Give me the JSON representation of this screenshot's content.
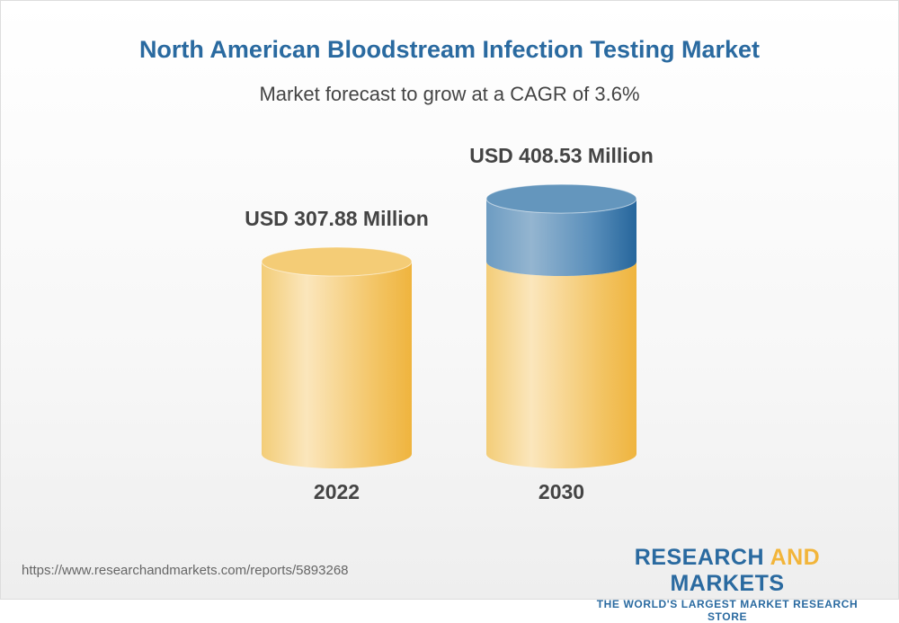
{
  "title": "North American Bloodstream Infection Testing Market",
  "subtitle": "Market forecast to grow at a CAGR of 3.6%",
  "chart_data": {
    "type": "bar",
    "style": "3d-cylinder",
    "categories": [
      "2022",
      "2030"
    ],
    "values": [
      307.88,
      408.53
    ],
    "data_labels": [
      "USD 307.88 Million",
      "USD 408.53 Million"
    ],
    "colors": {
      "base": "#f2c35a",
      "growth": "#2a6aa0"
    }
  },
  "footer": {
    "url": "https://www.researchandmarkets.com/reports/5893268"
  },
  "logo": {
    "research": "RESEARCH",
    "and": "AND",
    "markets": "MARKETS",
    "tagline": "THE WORLD'S LARGEST MARKET RESEARCH STORE"
  }
}
